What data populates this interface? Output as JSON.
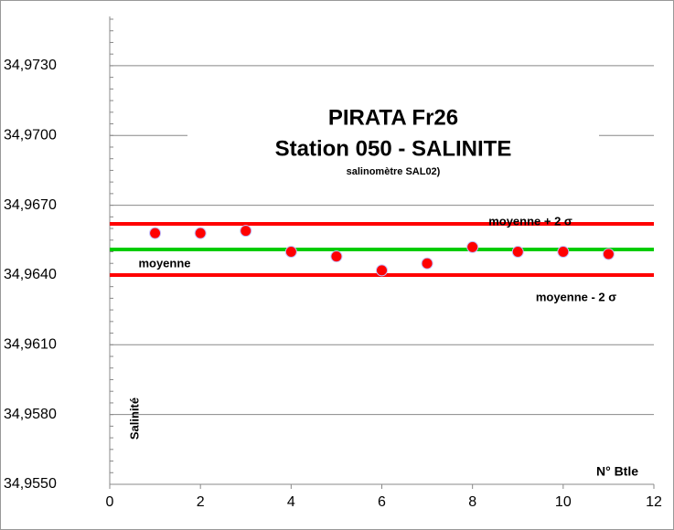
{
  "chart_data": {
    "type": "scatter",
    "title": [
      "PIRATA Fr26",
      "Station 050 - SALINITE"
    ],
    "subtitle": "salinomètre SAL02)",
    "y_label": "Salinité",
    "x_label": "N° Btle",
    "x": [
      1,
      2,
      3,
      4,
      5,
      6,
      7,
      8,
      9,
      10,
      11
    ],
    "series": [
      {
        "color": "#ff0000",
        "values": [
          34.9658,
          34.9658,
          34.9659,
          34.965,
          34.9648,
          34.9642,
          34.9645,
          34.9652,
          34.965,
          34.965,
          34.9649
        ]
      }
    ],
    "lines": [
      {
        "label": "moyenne + 2 σ",
        "value": 34.9662,
        "color": "#ff0000"
      },
      {
        "label": "moyenne",
        "value": 34.9651,
        "color": "#00cc00"
      },
      {
        "label": "moyenne - 2 σ",
        "value": 34.964,
        "color": "#ff0000"
      }
    ],
    "xlim": [
      0,
      12
    ],
    "xticks": [
      0,
      2,
      4,
      6,
      8,
      10,
      12
    ],
    "ylim": [
      34.955,
      34.975
    ],
    "yticks": [
      {
        "value": 34.955,
        "label": "34,9550"
      },
      {
        "value": 34.958,
        "label": "34,9580"
      },
      {
        "value": 34.961,
        "label": "34,9610"
      },
      {
        "value": 34.964,
        "label": "34,9640"
      },
      {
        "value": 34.967,
        "label": "34,9670"
      },
      {
        "value": 34.97,
        "label": "34,9700"
      },
      {
        "value": 34.973,
        "label": "34,9730"
      }
    ],
    "grid": true
  }
}
